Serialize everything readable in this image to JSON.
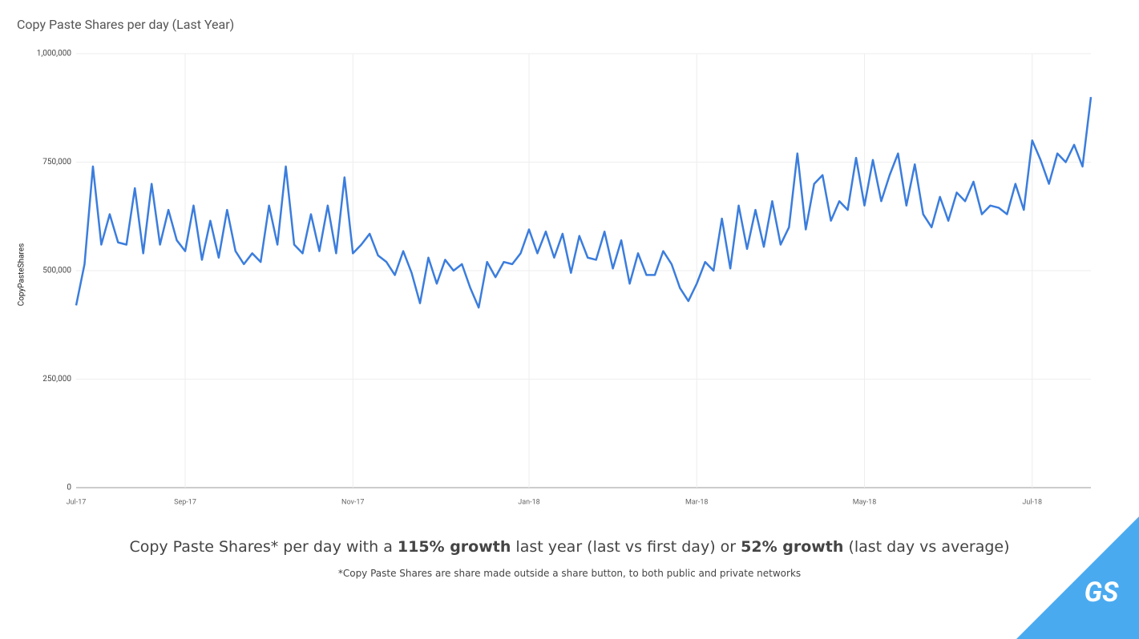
{
  "chart_data": {
    "type": "line",
    "title": "Copy Paste Shares per day (Last Year)",
    "y_label": "CopyPasteShares",
    "categories": [
      "Jul-17",
      null,
      null,
      null,
      null,
      null,
      null,
      null,
      null,
      null,
      null,
      null,
      null,
      "Sep-17",
      null,
      null,
      null,
      null,
      null,
      null,
      null,
      null,
      null,
      null,
      null,
      null,
      null,
      null,
      null,
      null,
      null,
      null,
      null,
      "Nov-17",
      null,
      null,
      null,
      null,
      null,
      null,
      null,
      null,
      null,
      null,
      null,
      null,
      null,
      null,
      null,
      null,
      null,
      null,
      null,
      null,
      "Jan-18",
      null,
      null,
      null,
      null,
      null,
      null,
      null,
      null,
      null,
      null,
      null,
      null,
      null,
      null,
      null,
      null,
      null,
      null,
      null,
      "Mar-18",
      null,
      null,
      null,
      null,
      null,
      null,
      null,
      null,
      null,
      null,
      null,
      null,
      null,
      null,
      null,
      null,
      null,
      null,
      null,
      "May-18",
      null,
      null,
      null,
      null,
      null,
      null,
      null,
      null,
      null,
      null,
      null,
      null,
      null,
      null,
      null,
      null,
      null,
      null,
      null,
      "Jul-18",
      null,
      null,
      null,
      null,
      null,
      null,
      null
    ],
    "values": [
      420000,
      515000,
      740000,
      560000,
      630000,
      565000,
      560000,
      690000,
      540000,
      700000,
      560000,
      640000,
      570000,
      545000,
      650000,
      525000,
      615000,
      530000,
      640000,
      545000,
      515000,
      540000,
      520000,
      650000,
      560000,
      740000,
      560000,
      540000,
      630000,
      545000,
      650000,
      540000,
      715000,
      540000,
      560000,
      585000,
      535000,
      520000,
      490000,
      545000,
      495000,
      425000,
      530000,
      470000,
      525000,
      500000,
      515000,
      460000,
      415000,
      520000,
      485000,
      520000,
      515000,
      540000,
      595000,
      540000,
      590000,
      530000,
      585000,
      495000,
      580000,
      530000,
      525000,
      590000,
      505000,
      570000,
      470000,
      540000,
      490000,
      490000,
      545000,
      515000,
      460000,
      430000,
      470000,
      520000,
      500000,
      620000,
      505000,
      650000,
      550000,
      640000,
      555000,
      660000,
      560000,
      600000,
      770000,
      595000,
      700000,
      720000,
      615000,
      660000,
      640000,
      760000,
      650000,
      755000,
      660000,
      720000,
      770000,
      650000,
      745000,
      630000,
      600000,
      670000,
      615000,
      680000,
      660000,
      705000,
      630000,
      650000,
      645000,
      630000,
      700000,
      640000,
      800000,
      755000,
      700000,
      770000,
      750000,
      790000,
      740000,
      900000
    ],
    "color": "#3b7ddd",
    "ylim": [
      0,
      1000000
    ],
    "yticks": [
      0,
      {
        "value": 250000,
        "label": "250,000"
      },
      {
        "value": 500000,
        "label": "500,000"
      },
      {
        "value": 750000,
        "label": "750,000"
      },
      {
        "value": 1000000,
        "label": "1,000,000"
      }
    ],
    "grid": true
  },
  "caption": {
    "parts": [
      "Copy Paste Shares* per day with a ",
      "115% growth",
      " last year (last vs first day) or ",
      "52% growth",
      " (last day vs average)"
    ],
    "footnote": "*Copy Paste Shares are share made outside a share button, to both public and private networks"
  },
  "logo": "GS"
}
